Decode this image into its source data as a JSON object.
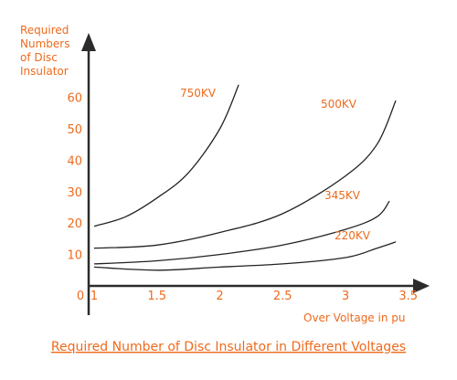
{
  "chart_data": {
    "type": "line",
    "title": "Required Number of Disc Insulator in Different Voltages",
    "ylabel_lines": [
      "Required",
      "Numbers",
      "of Disc",
      "Insulator"
    ],
    "xlabel": "Over Voltage in pu",
    "x_origin_label": "0",
    "x_ticks": [
      "1",
      "1.5",
      "2",
      "2.5",
      "3",
      "3.5"
    ],
    "y_ticks": [
      "10",
      "20",
      "30",
      "40",
      "50",
      "60"
    ],
    "xlim": [
      1,
      3.8
    ],
    "ylim": [
      0,
      66
    ],
    "series": [
      {
        "name": "750KV",
        "x": [
          1,
          1.25,
          1.5,
          1.75,
          2,
          2.15
        ],
        "y": [
          19,
          22,
          28,
          36,
          50,
          64
        ]
      },
      {
        "name": "500KV",
        "x": [
          1,
          1.5,
          2,
          2.5,
          3,
          3.25,
          3.4
        ],
        "y": [
          12,
          13,
          17,
          23,
          35,
          45,
          59
        ]
      },
      {
        "name": "345KV",
        "x": [
          1,
          1.5,
          2,
          2.5,
          3,
          3.25,
          3.35
        ],
        "y": [
          7,
          8,
          10,
          13,
          18,
          22,
          27
        ]
      },
      {
        "name": "220KV",
        "x": [
          1,
          1.5,
          2,
          2.5,
          3,
          3.25,
          3.4
        ],
        "y": [
          6,
          5,
          6,
          7,
          9,
          12,
          14
        ]
      }
    ],
    "colors": {
      "text": "#ee6a1c",
      "axis": "#2b2b2b",
      "curve": "#222222"
    }
  }
}
